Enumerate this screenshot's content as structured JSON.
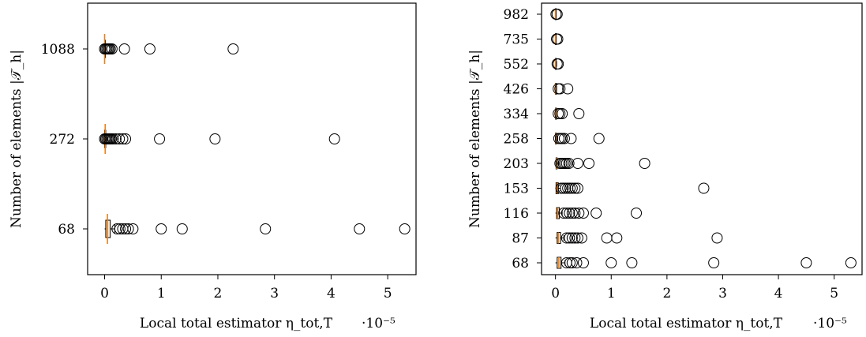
{
  "chart_data": [
    {
      "type": "box",
      "orientation": "horizontal",
      "xlabel": "Local total estimator η_tot,T",
      "ylabel": "Number of elements |𝒯_h|",
      "xscale_label": "·10⁻⁵",
      "xlim": [
        -0.3,
        5.5
      ],
      "xticks": [
        0,
        1,
        2,
        3,
        4,
        5
      ],
      "categories": [
        "68",
        "272",
        "1088"
      ],
      "boxes": [
        {
          "q1": 0.02,
          "median": 0.05,
          "q3": 0.1,
          "whisker_low": 0.0,
          "whisker_high": 0.18
        },
        {
          "q1": 0.0,
          "median": 0.01,
          "q3": 0.02,
          "whisker_low": 0.0,
          "whisker_high": 0.05
        },
        {
          "q1": 0.0,
          "median": 0.0,
          "q3": 0.01,
          "whisker_low": 0.0,
          "whisker_high": 0.02
        }
      ],
      "outliers": [
        [
          0.22,
          0.27,
          0.32,
          0.37,
          0.42,
          0.5,
          1.0,
          1.37,
          2.84,
          4.5,
          5.3
        ],
        [
          0.0,
          0.02,
          0.04,
          0.06,
          0.08,
          0.1,
          0.12,
          0.15,
          0.2,
          0.26,
          0.32,
          0.37,
          0.97,
          1.95,
          4.06
        ],
        [
          0.0,
          0.02,
          0.04,
          0.06,
          0.08,
          0.1,
          0.13,
          0.35,
          0.8,
          2.27
        ]
      ]
    },
    {
      "type": "box",
      "orientation": "horizontal",
      "xlabel": "Local total estimator η_tot,T",
      "ylabel": "Number of elements |𝒯_h|",
      "xscale_label": "·10⁻⁵",
      "xlim": [
        -0.25,
        5.5
      ],
      "xticks": [
        0,
        1,
        2,
        3,
        4,
        5
      ],
      "categories": [
        "68",
        "87",
        "116",
        "153",
        "203",
        "258",
        "334",
        "426",
        "552",
        "735",
        "982"
      ],
      "boxes": [
        {
          "q1": 0.03,
          "median": 0.06,
          "q3": 0.1,
          "whisker_low": 0.0,
          "whisker_high": 0.17
        },
        {
          "q1": 0.03,
          "median": 0.05,
          "q3": 0.09,
          "whisker_low": 0.0,
          "whisker_high": 0.15
        },
        {
          "q1": 0.02,
          "median": 0.04,
          "q3": 0.07,
          "whisker_low": 0.0,
          "whisker_high": 0.12
        },
        {
          "q1": 0.01,
          "median": 0.03,
          "q3": 0.05,
          "whisker_low": 0.0,
          "whisker_high": 0.09
        },
        {
          "q1": 0.01,
          "median": 0.02,
          "q3": 0.03,
          "whisker_low": 0.0,
          "whisker_high": 0.06
        },
        {
          "q1": 0.0,
          "median": 0.01,
          "q3": 0.02,
          "whisker_low": 0.0,
          "whisker_high": 0.04
        },
        {
          "q1": 0.0,
          "median": 0.01,
          "q3": 0.02,
          "whisker_low": 0.0,
          "whisker_high": 0.03
        },
        {
          "q1": 0.0,
          "median": 0.0,
          "q3": 0.01,
          "whisker_low": 0.0,
          "whisker_high": 0.02
        },
        {
          "q1": 0.0,
          "median": 0.0,
          "q3": 0.01,
          "whisker_low": 0.0,
          "whisker_high": 0.02
        },
        {
          "q1": 0.0,
          "median": 0.0,
          "q3": 0.0,
          "whisker_low": 0.0,
          "whisker_high": 0.01
        },
        {
          "q1": 0.0,
          "median": 0.0,
          "q3": 0.0,
          "whisker_low": 0.0,
          "whisker_high": 0.01
        }
      ],
      "outliers": [
        [
          0.2,
          0.26,
          0.3,
          0.38,
          0.5,
          1.0,
          1.37,
          2.84,
          4.5,
          5.3
        ],
        [
          0.2,
          0.25,
          0.3,
          0.35,
          0.4,
          0.47,
          0.92,
          1.1,
          2.9
        ],
        [
          0.15,
          0.2,
          0.25,
          0.3,
          0.35,
          0.42,
          0.5,
          0.73,
          1.45
        ],
        [
          0.1,
          0.14,
          0.18,
          0.22,
          0.26,
          0.3,
          0.35,
          0.4,
          2.66
        ],
        [
          0.08,
          0.11,
          0.14,
          0.17,
          0.2,
          0.24,
          0.4,
          0.6,
          1.6
        ],
        [
          0.06,
          0.09,
          0.12,
          0.16,
          0.28,
          0.78
        ],
        [
          0.05,
          0.08,
          0.12,
          0.42
        ],
        [
          0.05,
          0.08,
          0.22
        ],
        [
          0.03,
          0.05
        ],
        [
          0.02,
          0.04
        ],
        [
          0.01,
          0.03
        ]
      ]
    }
  ]
}
